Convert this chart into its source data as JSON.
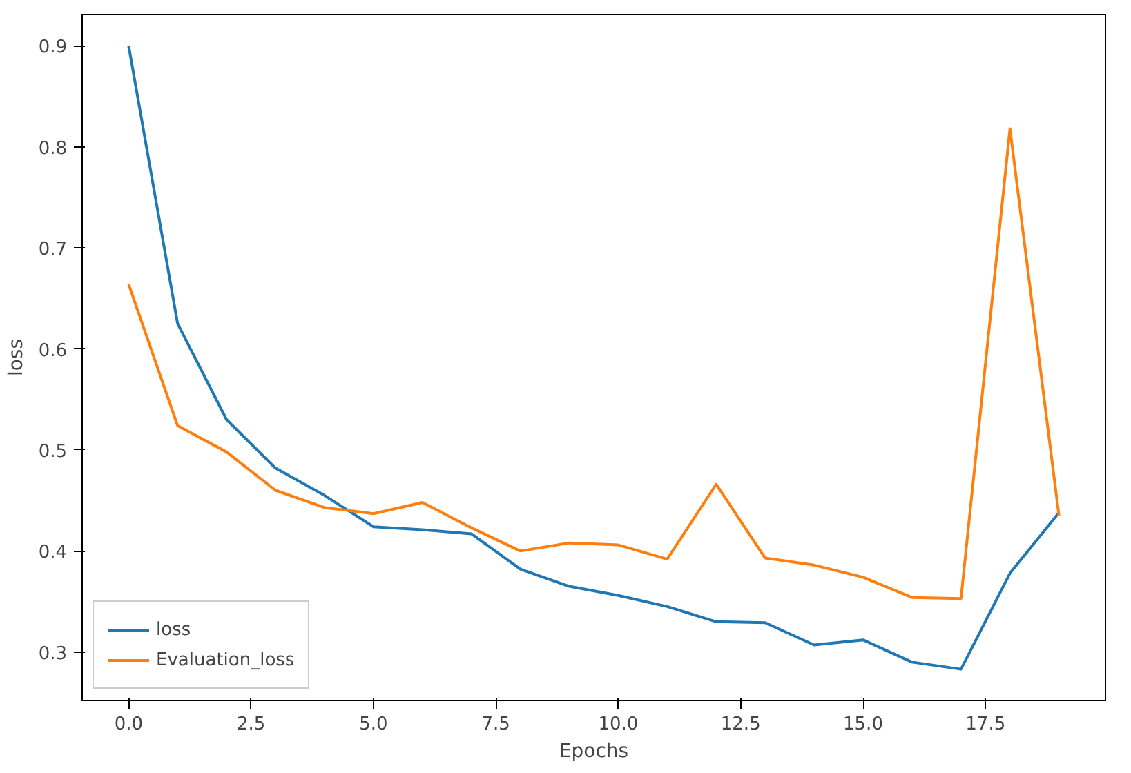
{
  "chart_data": {
    "type": "line",
    "xlabel": "Epochs",
    "ylabel": "loss",
    "x": [
      0,
      1,
      2,
      3,
      4,
      5,
      6,
      7,
      8,
      9,
      10,
      11,
      12,
      13,
      14,
      15,
      16,
      17,
      18,
      19
    ],
    "series": [
      {
        "name": "loss",
        "color": "#1f77b4",
        "values": [
          0.9,
          0.625,
          0.53,
          0.482,
          0.455,
          0.424,
          0.421,
          0.417,
          0.382,
          0.365,
          0.356,
          0.345,
          0.33,
          0.329,
          0.307,
          0.312,
          0.29,
          0.283,
          0.378,
          0.438
        ]
      },
      {
        "name": "Evaluation_loss",
        "color": "#ff7f0e",
        "values": [
          0.664,
          0.524,
          0.498,
          0.46,
          0.443,
          0.437,
          0.448,
          0.423,
          0.4,
          0.408,
          0.406,
          0.392,
          0.466,
          0.393,
          0.386,
          0.374,
          0.354,
          0.353,
          0.818,
          0.435
        ]
      }
    ],
    "xlim": [
      -0.95,
      19.95
    ],
    "ylim": [
      0.252,
      0.931
    ],
    "xticks": [
      {
        "value": 0,
        "label": "0.0"
      },
      {
        "value": 2.5,
        "label": "2.5"
      },
      {
        "value": 5,
        "label": "5.0"
      },
      {
        "value": 7.5,
        "label": "7.5"
      },
      {
        "value": 10,
        "label": "10.0"
      },
      {
        "value": 12.5,
        "label": "12.5"
      },
      {
        "value": 15,
        "label": "15.0"
      },
      {
        "value": 17.5,
        "label": "17.5"
      }
    ],
    "yticks": [
      0.3,
      0.4,
      0.5,
      0.6,
      0.7,
      0.8,
      0.9
    ],
    "legend": "bottom left",
    "grid": false
  }
}
